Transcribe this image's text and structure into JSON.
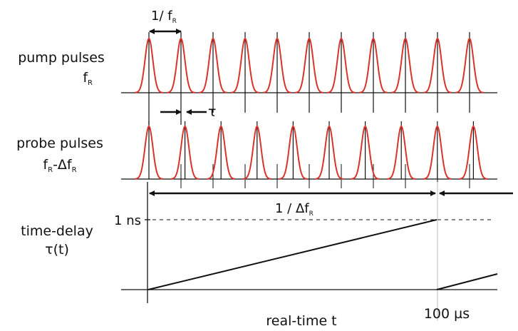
{
  "pump": {
    "label": "pump pulses",
    "freq_main": "f",
    "freq_sub": "R",
    "count": 11
  },
  "probe": {
    "label": "probe pulses",
    "freq_a": "f",
    "freq_a_sub": "R",
    "freq_b": "-Δf",
    "freq_b_sub": "R",
    "count": 10
  },
  "period_label": {
    "main": "1/ f",
    "sub": "R"
  },
  "tau_label": "τ",
  "delta_label": {
    "main": "1 / Δf",
    "sub": "R"
  },
  "delay": {
    "label": "time-delay",
    "symbol": "τ(t)",
    "max_label": "1 ns",
    "max_value_ns": 1,
    "period_us": 100
  },
  "x_axis": {
    "label": "real-time t",
    "tick_label": "100 µs"
  },
  "colors": {
    "pulse": "#d9342b",
    "line": "#111111"
  }
}
